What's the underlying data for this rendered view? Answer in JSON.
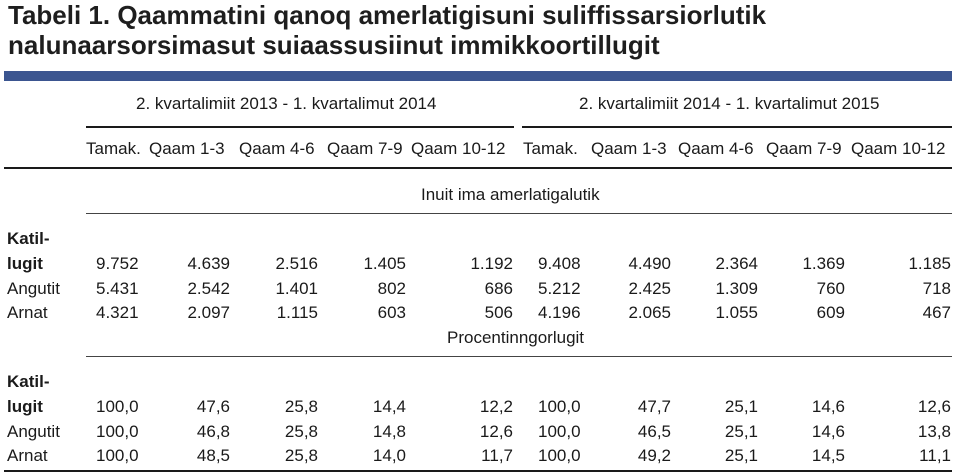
{
  "title": "Tabeli 1. Qaammatini qanoq amerlatigisuni suliffissarsiorlutik nalunaarsorsimasut suiaassusiinut immikkoortillugit",
  "accent_color": "#3b5590",
  "period_headers": [
    "2. kvartalimiit 2013 - 1. kvartalimut 2014",
    "2. kvartalimiit 2014 - 1. kvartalimut 2015"
  ],
  "column_headers": [
    "Tamak.",
    "Qaam 1-3",
    "Qaam 4-6",
    "Qaam 7-9",
    "Qaam 10-12",
    "Tamak.",
    "Qaam 1-3",
    "Qaam 4-6",
    "Qaam 7-9",
    "Qaam 10-12"
  ],
  "section1": {
    "heading": "Inuit ima amerlatigalutik",
    "label_top": "Katil-",
    "rows": [
      {
        "label": "lugit",
        "values": [
          "9.752",
          "4.639",
          "2.516",
          "1.405",
          "1.192",
          "9.408",
          "4.490",
          "2.364",
          "1.369",
          "1.185"
        ]
      },
      {
        "label": "Angutit",
        "values": [
          "5.431",
          "2.542",
          "1.401",
          "802",
          "686",
          "5.212",
          "2.425",
          "1.309",
          "760",
          "718"
        ]
      },
      {
        "label": "Arnat",
        "values": [
          "4.321",
          "2.097",
          "1.115",
          "603",
          "506",
          "4.196",
          "2.065",
          "1.055",
          "609",
          "467"
        ]
      }
    ]
  },
  "section2": {
    "heading": "Procentinngorlugit",
    "label_top": "Katil-",
    "rows": [
      {
        "label": "lugit",
        "values": [
          "100,0",
          "47,6",
          "25,8",
          "14,4",
          "12,2",
          "100,0",
          "47,7",
          "25,1",
          "14,6",
          "12,6"
        ]
      },
      {
        "label": "Angutit",
        "values": [
          "100,0",
          "46,8",
          "25,8",
          "14,8",
          "12,6",
          "100,0",
          "46,5",
          "25,1",
          "14,6",
          "13,8"
        ]
      },
      {
        "label": "Arnat",
        "values": [
          "100,0",
          "48,5",
          "25,8",
          "14,0",
          "11,7",
          "100,0",
          "49,2",
          "25,1",
          "14,5",
          "11,1"
        ]
      }
    ]
  }
}
